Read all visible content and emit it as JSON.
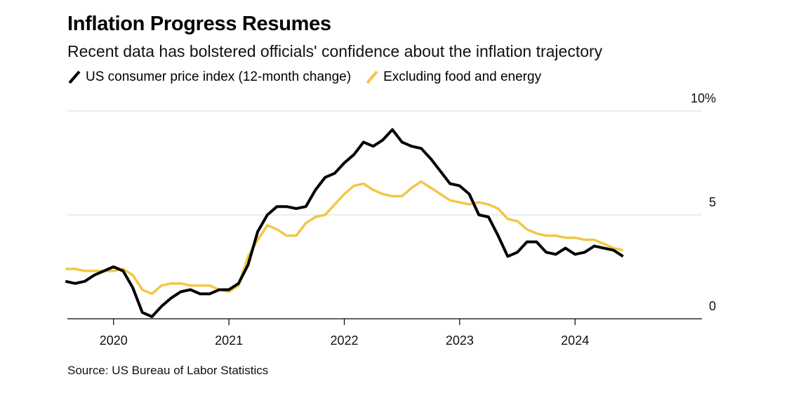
{
  "chart_data": {
    "type": "line",
    "title": "Inflation Progress Resumes",
    "subtitle": "Recent data has bolstered officials' confidence about the inflation trajectory",
    "source": "Source: US Bureau of Labor Statistics",
    "x_start": "2019-08",
    "x_range": [
      2019.6,
      2025.1
    ],
    "x_ticks": [
      {
        "value": 2020,
        "label": "2020"
      },
      {
        "value": 2021,
        "label": "2021"
      },
      {
        "value": 2022,
        "label": "2022"
      },
      {
        "value": 2023,
        "label": "2023"
      },
      {
        "value": 2024,
        "label": "2024"
      }
    ],
    "ylim": [
      0,
      10
    ],
    "y_ticks": [
      {
        "value": 10,
        "label": "10%"
      },
      {
        "value": 5,
        "label": "5"
      },
      {
        "value": 0,
        "label": "0"
      }
    ],
    "series": [
      {
        "name": "US consumer price index (12-month change)",
        "color": "#000000",
        "values": [
          1.8,
          1.7,
          1.8,
          2.1,
          2.3,
          2.5,
          2.3,
          1.5,
          0.3,
          0.1,
          0.6,
          1.0,
          1.3,
          1.4,
          1.2,
          1.2,
          1.4,
          1.4,
          1.7,
          2.6,
          4.2,
          5.0,
          5.4,
          5.4,
          5.3,
          5.4,
          6.2,
          6.8,
          7.0,
          7.5,
          7.9,
          8.5,
          8.3,
          8.6,
          9.1,
          8.5,
          8.3,
          8.2,
          7.7,
          7.1,
          6.5,
          6.4,
          6.0,
          5.0,
          4.9,
          4.0,
          3.0,
          3.2,
          3.7,
          3.7,
          3.2,
          3.1,
          3.4,
          3.1,
          3.2,
          3.5,
          3.4,
          3.3,
          3.0
        ]
      },
      {
        "name": "Excluding food and energy",
        "color": "#f2c744",
        "values": [
          2.4,
          2.4,
          2.3,
          2.3,
          2.3,
          2.3,
          2.4,
          2.1,
          1.4,
          1.2,
          1.6,
          1.7,
          1.7,
          1.6,
          1.6,
          1.6,
          1.4,
          1.3,
          1.6,
          3.0,
          3.8,
          4.5,
          4.3,
          4.0,
          4.0,
          4.6,
          4.9,
          5.0,
          5.5,
          6.0,
          6.4,
          6.5,
          6.2,
          6.0,
          5.9,
          5.9,
          6.3,
          6.6,
          6.3,
          6.0,
          5.7,
          5.6,
          5.5,
          5.6,
          5.5,
          5.3,
          4.8,
          4.7,
          4.3,
          4.1,
          4.0,
          4.0,
          3.9,
          3.9,
          3.8,
          3.8,
          3.6,
          3.4,
          3.3
        ]
      }
    ]
  }
}
